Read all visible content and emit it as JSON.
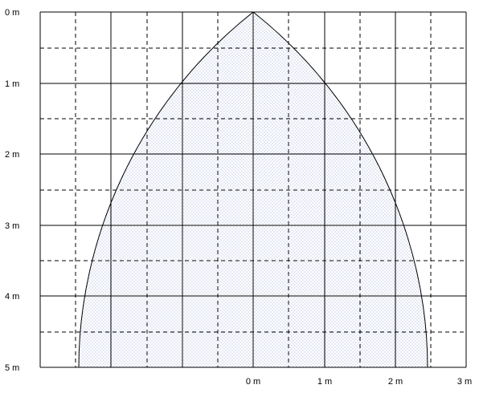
{
  "diagram": {
    "y_axis_labels": [
      "0 m",
      "1 m",
      "2 m",
      "3 m",
      "4 m",
      "5 m"
    ],
    "x_axis_labels": [
      "0 m",
      "1 m",
      "2 m",
      "3 m"
    ],
    "colors": {
      "line": "#000000",
      "dots": "#8090c8",
      "background": "#ffffff"
    }
  }
}
